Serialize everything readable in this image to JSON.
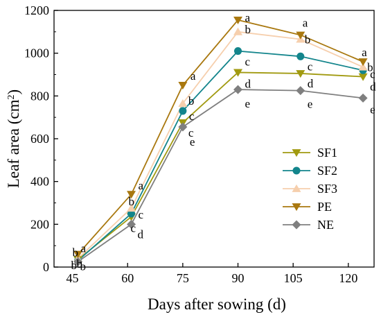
{
  "chart_data": {
    "type": "line",
    "xlabel": "Days after sowing (d)",
    "ylabel": "Leaf area (cm",
    "ylabel_sup": "2",
    "ylabel_close": ")",
    "xlim": [
      40,
      127
    ],
    "ylim": [
      0,
      1200
    ],
    "x_ticks": [
      45,
      60,
      75,
      90,
      105,
      120
    ],
    "y_ticks": [
      0,
      200,
      400,
      600,
      800,
      1000,
      1200
    ],
    "x": [
      46.5,
      61,
      75,
      90,
      107,
      124
    ],
    "grid": false,
    "legend_position": "lower-right",
    "series": [
      {
        "name": "SF1",
        "color": "#a19a10",
        "marker": "triangle-down",
        "values": [
          35,
          235,
          675,
          910,
          905,
          890
        ],
        "labels": [
          "b",
          "c",
          "c",
          "d",
          "d",
          "d"
        ]
      },
      {
        "name": "SF2",
        "color": "#13858c",
        "marker": "circle",
        "values": [
          30,
          250,
          730,
          1010,
          985,
          920
        ],
        "labels": [
          "b",
          "c",
          "c",
          "c",
          "c",
          "c"
        ]
      },
      {
        "name": "SF3",
        "color": "#f6cfad",
        "marker": "triangle-up",
        "values": [
          40,
          275,
          765,
          1100,
          1065,
          935
        ],
        "labels": [
          "b",
          "b",
          "b",
          "b",
          "b",
          "b"
        ]
      },
      {
        "name": "PE",
        "color": "#a9780f",
        "marker": "triangle-down",
        "values": [
          60,
          340,
          850,
          1155,
          1085,
          960
        ],
        "labels": [
          "a",
          "a",
          "a",
          "a",
          "a",
          "a"
        ]
      },
      {
        "name": "NE",
        "color": "#7f7f7f",
        "marker": "diamond",
        "values": [
          25,
          200,
          655,
          830,
          825,
          790
        ],
        "labels": [
          "b",
          "d",
          "e",
          "e",
          "e",
          "e"
        ]
      }
    ]
  }
}
